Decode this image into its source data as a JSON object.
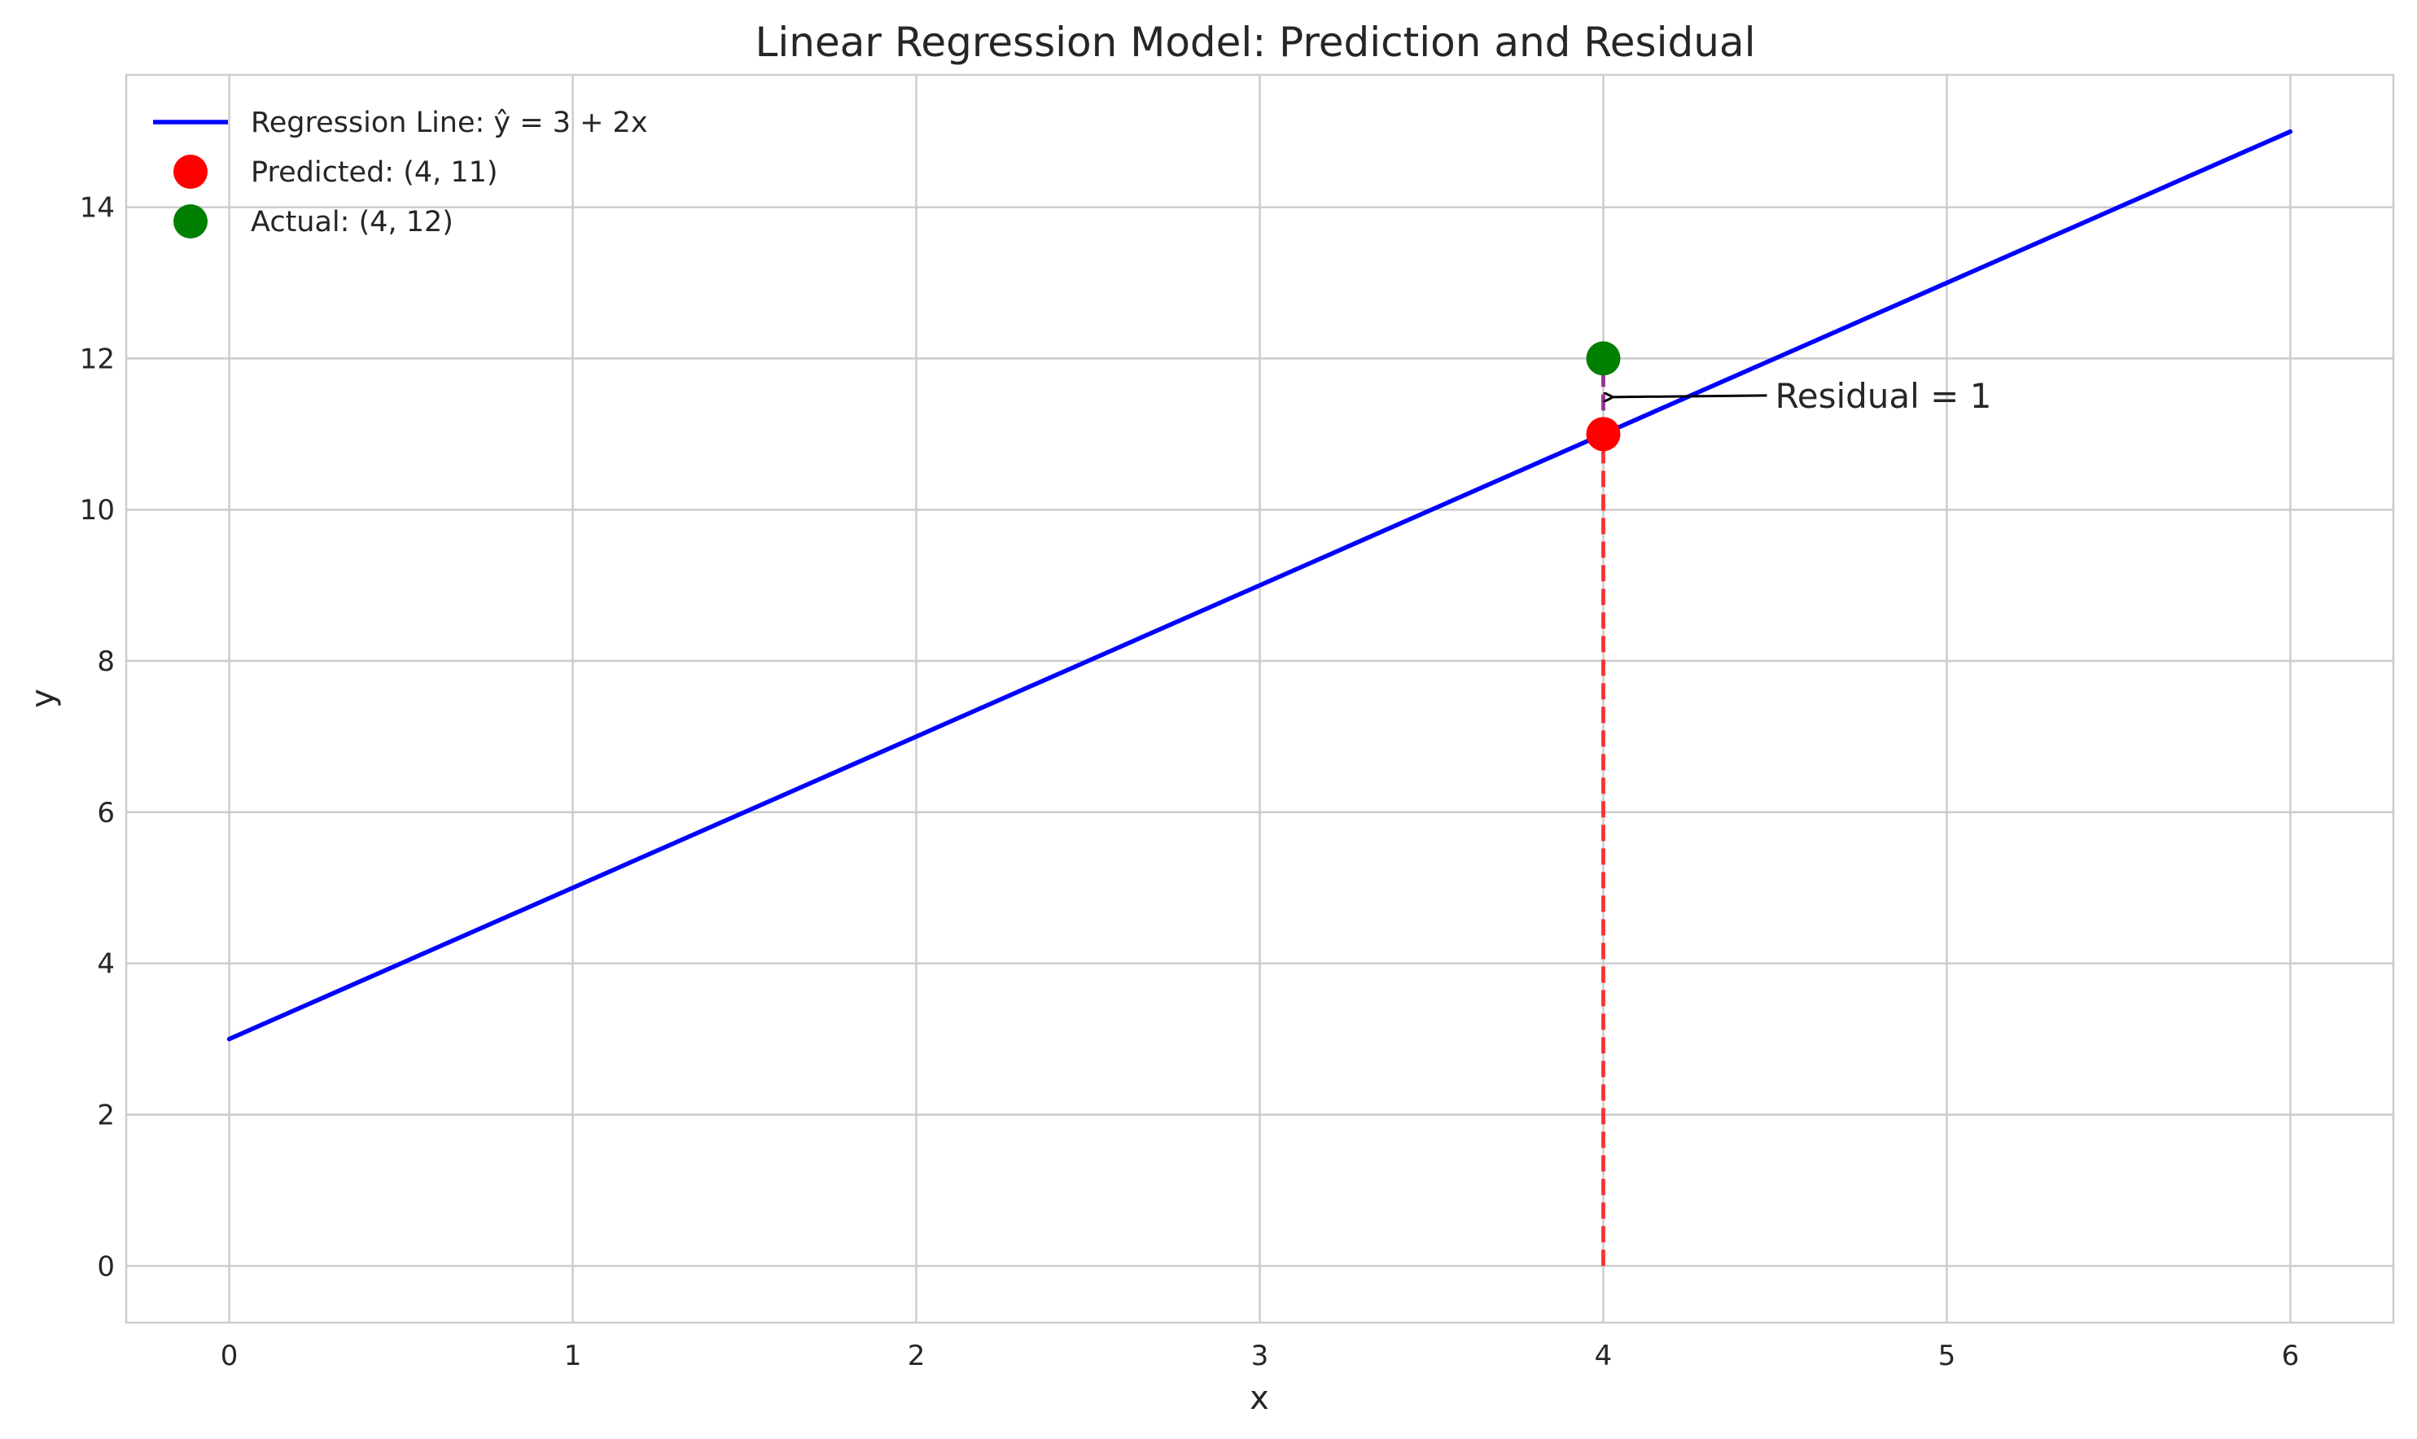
{
  "chart_data": {
    "type": "line",
    "title": "Linear Regression Model: Prediction and Residual",
    "xlabel": "x",
    "ylabel": "y",
    "xlim": [
      -0.3,
      6.3
    ],
    "ylim": [
      -0.75,
      15.75
    ],
    "xticks": [
      0,
      1,
      2,
      3,
      4,
      5,
      6
    ],
    "yticks": [
      0,
      2,
      4,
      6,
      8,
      10,
      12,
      14
    ],
    "grid": true,
    "legend_position": "top-left",
    "regression_line": {
      "name": "Regression Line: ŷ = 3 + 2x",
      "color": "#0000ff",
      "x": [
        0,
        6
      ],
      "y": [
        3,
        15
      ]
    },
    "points": [
      {
        "name": "Predicted: (4, 11)",
        "x": 4,
        "y": 11,
        "color": "#ff0000"
      },
      {
        "name": "Actual: (4, 12)",
        "x": 4,
        "y": 12,
        "color": "#008000"
      }
    ],
    "drop_line": {
      "x": 4,
      "y_from": 0,
      "y_to": 11,
      "color": "#ff0000",
      "style": "dashed"
    },
    "residual_segment": {
      "x": 4,
      "y_from": 11,
      "y_to": 12,
      "color": "#800080",
      "style": "dashed"
    },
    "annotation": {
      "text": "Residual = 1",
      "text_x": 4.5,
      "text_y": 11.5,
      "arrow_to_x": 4,
      "arrow_to_y": 11.5
    }
  }
}
